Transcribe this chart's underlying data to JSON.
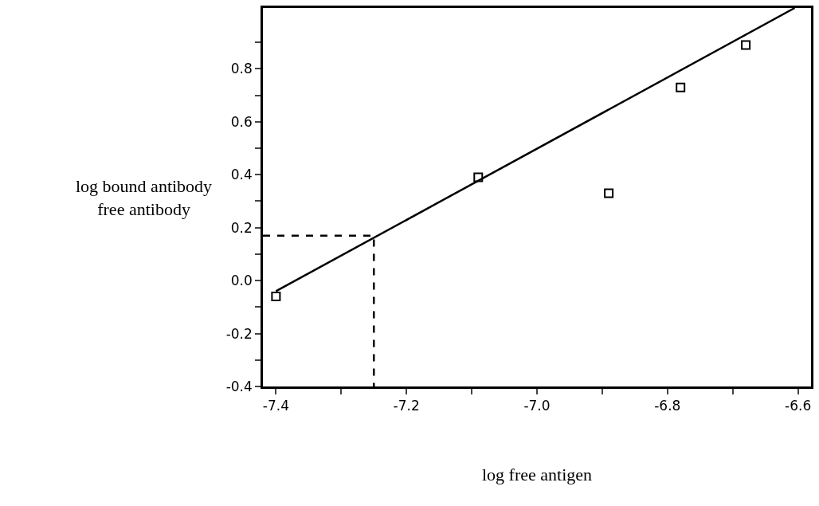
{
  "chart_data": {
    "type": "scatter",
    "xlabel": "log free antigen",
    "ylabel": "log bound antibody\nfree antibody",
    "xlim": [
      -7.42,
      -6.58
    ],
    "ylim": [
      -0.4,
      1.03
    ],
    "xticks": [
      -7.4,
      {
        "value": -7.3,
        "label": null
      },
      -7.2,
      {
        "value": -7.1,
        "label": null
      },
      {
        "value": -7.0,
        "label": "-7.0"
      },
      {
        "value": -6.9,
        "label": null
      },
      -6.8,
      {
        "value": -6.7,
        "label": null
      },
      -6.6
    ],
    "yticks": [
      -0.4,
      {
        "value": -0.3,
        "label": null
      },
      -0.2,
      {
        "value": -0.1,
        "label": null
      },
      {
        "value": 0.0,
        "label": "0.0"
      },
      {
        "value": 0.1,
        "label": null
      },
      0.2,
      {
        "value": 0.3,
        "label": null
      },
      0.4,
      {
        "value": 0.5,
        "label": null
      },
      0.6,
      {
        "value": 0.7,
        "label": null
      },
      0.8,
      {
        "value": 0.9,
        "label": null
      }
    ],
    "grid": false,
    "series": [
      {
        "marker": "square",
        "color": "#000000",
        "x": [
          -7.4,
          -7.09,
          -6.89,
          -6.78,
          -6.68
        ],
        "values": [
          -0.06,
          0.39,
          0.33,
          0.73,
          0.89
        ]
      },
      {
        "type": "line",
        "marker": "none",
        "line_style": "solid",
        "color": "#000000",
        "x": [
          -7.4,
          -6.605
        ],
        "values": [
          -0.04,
          1.03
        ]
      },
      {
        "type": "line",
        "marker": "none",
        "line_style": "dashed",
        "color": "#000000",
        "x": [
          -7.42,
          -7.25,
          -7.25
        ],
        "values": [
          0.17,
          0.17,
          -0.4
        ]
      }
    ]
  }
}
